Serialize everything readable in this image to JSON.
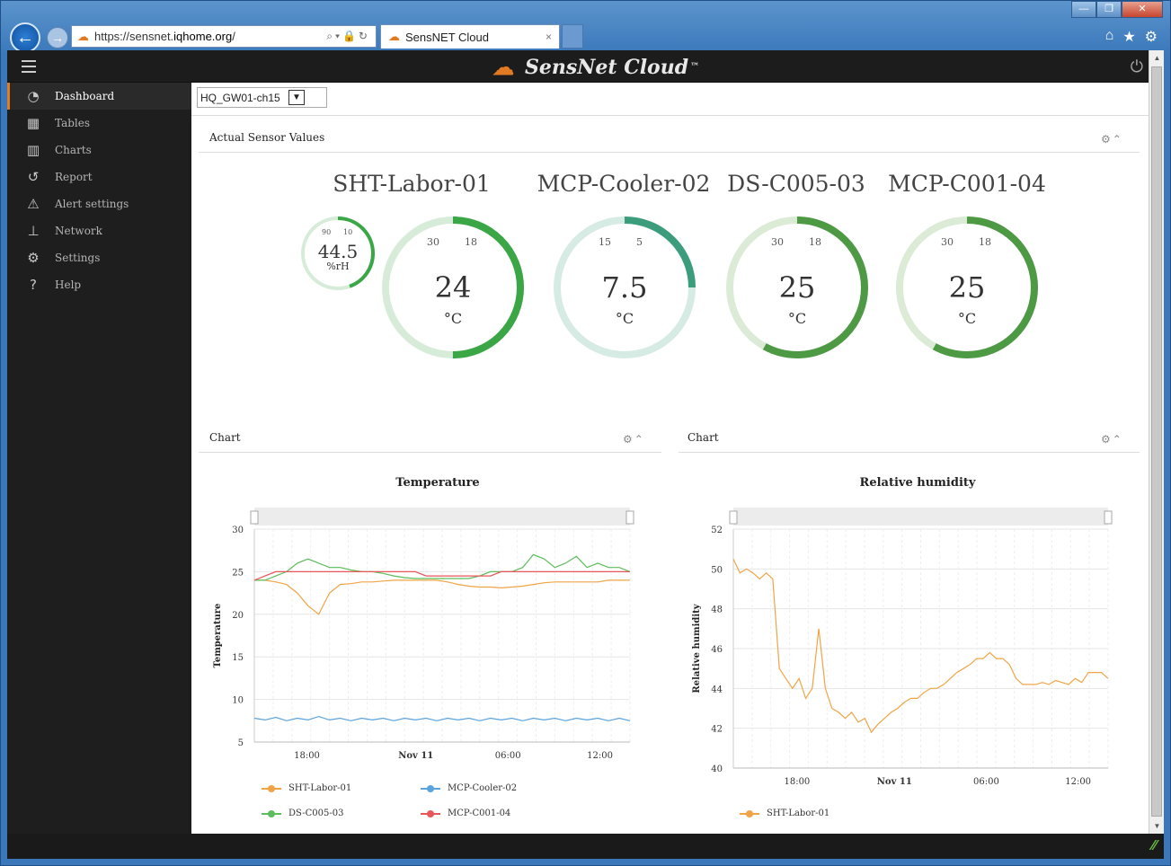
{
  "browser": {
    "url_prefix": "https://sensnet.",
    "url_domain": "iqhome.org",
    "url_suffix": "/",
    "tab_title": "SensNET Cloud",
    "tab_close": "×",
    "back_glyph": "←",
    "forward_glyph": "→",
    "window_buttons": [
      "—",
      "❐",
      "✕"
    ],
    "icons": [
      "home-icon",
      "star-icon",
      "gear-icon"
    ]
  },
  "app": {
    "logo_text": "SensNet Cloud",
    "logo_tm": "™"
  },
  "sidebar": {
    "items": [
      {
        "label": "Dashboard",
        "icon": "dashboard-icon",
        "glyph": "◔",
        "active": true
      },
      {
        "label": "Tables",
        "icon": "table-icon",
        "glyph": "▦",
        "active": false
      },
      {
        "label": "Charts",
        "icon": "bar-chart-icon",
        "glyph": "▥",
        "active": false
      },
      {
        "label": "Report",
        "icon": "history-icon",
        "glyph": "↺",
        "active": false
      },
      {
        "label": "Alert settings",
        "icon": "warning-icon",
        "glyph": "⚠",
        "active": false
      },
      {
        "label": "Network",
        "icon": "sitemap-icon",
        "glyph": "⊥",
        "active": false
      },
      {
        "label": "Settings",
        "icon": "cogs-icon",
        "glyph": "⚙",
        "active": false
      },
      {
        "label": "Help",
        "icon": "question-icon",
        "glyph": "?",
        "active": false
      }
    ]
  },
  "gateway_select": {
    "value": "HQ_GW01-ch15"
  },
  "sensor_panel": {
    "title": "Actual Sensor Values"
  },
  "sensors": [
    {
      "name": "SHT-Labor-01",
      "value": "24",
      "unit": "°C",
      "th_high": "30",
      "th_low": "18",
      "fill": 0.5,
      "color": "#3aa646",
      "track": "#d7ecd8",
      "humidity": {
        "value": "44.5",
        "unit": "%rH",
        "th_high": "90",
        "th_low": "10",
        "fill": 0.445
      }
    },
    {
      "name": "MCP-Cooler-02",
      "value": "7.5",
      "unit": "°C",
      "th_high": "15",
      "th_low": "5",
      "fill": 0.25,
      "color": "#3b9d7c",
      "track": "#d5ebe3"
    },
    {
      "name": "DS-C005-03",
      "value": "25",
      "unit": "°C",
      "th_high": "30",
      "th_low": "18",
      "fill": 0.58,
      "color": "#4e9a44",
      "track": "#dbebd6"
    },
    {
      "name": "MCP-C001-04",
      "value": "25",
      "unit": "°C",
      "th_high": "30",
      "th_low": "18",
      "fill": 0.58,
      "color": "#4e9a44",
      "track": "#dbebd6"
    }
  ],
  "chart_panels": [
    {
      "title": "Chart"
    },
    {
      "title": "Chart"
    }
  ],
  "chart_data": [
    {
      "type": "line",
      "title": "Temperature",
      "ylabel": "Temperature",
      "xlabel": "",
      "ylim": [
        5,
        30
      ],
      "yticks": [
        "30",
        "25",
        "20",
        "15",
        "10",
        "5"
      ],
      "xticks": [
        {
          "label": "18:00",
          "pos": 0.14
        },
        {
          "label": "Nov 11",
          "pos": 0.43,
          "bold": true
        },
        {
          "label": "06:00",
          "pos": 0.675
        },
        {
          "label": "12:00",
          "pos": 0.92
        }
      ],
      "series": [
        {
          "name": "SHT-Labor-01",
          "color": "#f0a445",
          "values": [
            24,
            24,
            23.8,
            23.5,
            22.5,
            21,
            20,
            22.5,
            23.5,
            23.6,
            23.8,
            23.8,
            23.9,
            24,
            24,
            24,
            24,
            24,
            23.8,
            23.5,
            23.3,
            23.2,
            23.2,
            23.1,
            23.2,
            23.3,
            23.5,
            23.7,
            23.8,
            23.8,
            23.8,
            23.8,
            23.8,
            24,
            24,
            24
          ]
        },
        {
          "name": "MCP-Cooler-02",
          "color": "#5aa3de",
          "values": [
            7.8,
            7.6,
            7.9,
            7.5,
            7.8,
            7.6,
            8.0,
            7.6,
            7.8,
            7.5,
            7.8,
            7.6,
            7.8,
            7.5,
            7.8,
            7.6,
            7.8,
            7.5,
            7.8,
            7.6,
            7.8,
            7.5,
            7.8,
            7.6,
            7.8,
            7.5,
            7.8,
            7.6,
            7.8,
            7.5,
            7.8,
            7.6,
            7.8,
            7.5,
            7.8,
            7.5
          ]
        },
        {
          "name": "DS-C005-03",
          "color": "#5bbd5b",
          "values": [
            24,
            24,
            24.5,
            25,
            26,
            26.5,
            26,
            25.5,
            25.5,
            25.2,
            25,
            25,
            24.8,
            24.5,
            24.3,
            24.2,
            24.2,
            24.2,
            24.2,
            24.2,
            24.2,
            24.5,
            25,
            25,
            25,
            25.5,
            27,
            26.5,
            25.5,
            26,
            26.8,
            25.5,
            26,
            25.5,
            25.5,
            25
          ]
        },
        {
          "name": "MCP-C001-04",
          "color": "#e8565a",
          "values": [
            24,
            24.5,
            25,
            25,
            25,
            25,
            25,
            25,
            25,
            25,
            25,
            25,
            25,
            25,
            25,
            25,
            24.5,
            24.5,
            24.5,
            24.5,
            24.5,
            24.5,
            24.5,
            25,
            25,
            25,
            25,
            25,
            25,
            25,
            25,
            25,
            25,
            25,
            25,
            25
          ]
        }
      ]
    },
    {
      "type": "line",
      "title": "Relative humidity",
      "ylabel": "Relative humidity",
      "xlabel": "",
      "ylim": [
        40,
        52
      ],
      "yticks": [
        "52",
        "50",
        "48",
        "46",
        "44",
        "42",
        "40"
      ],
      "xticks": [
        {
          "label": "18:00",
          "pos": 0.17
        },
        {
          "label": "Nov 11",
          "pos": 0.43,
          "bold": true
        },
        {
          "label": "06:00",
          "pos": 0.675
        },
        {
          "label": "12:00",
          "pos": 0.92
        }
      ],
      "series": [
        {
          "name": "SHT-Labor-01",
          "color": "#f0a445",
          "values": [
            50.5,
            49.8,
            50,
            49.8,
            49.5,
            49.8,
            49.5,
            45,
            44.5,
            44,
            44.5,
            43.5,
            44,
            47,
            44,
            43,
            42.8,
            42.5,
            42.8,
            42.3,
            42.5,
            41.8,
            42.2,
            42.5,
            42.8,
            43,
            43.3,
            43.5,
            43.5,
            43.8,
            44,
            44,
            44.2,
            44.5,
            44.8,
            45,
            45.2,
            45.5,
            45.5,
            45.8,
            45.5,
            45.5,
            45.2,
            44.5,
            44.2,
            44.2,
            44.2,
            44.3,
            44.2,
            44.4,
            44.3,
            44.2,
            44.5,
            44.3,
            44.8,
            44.8,
            44.8,
            44.5
          ]
        }
      ]
    }
  ]
}
